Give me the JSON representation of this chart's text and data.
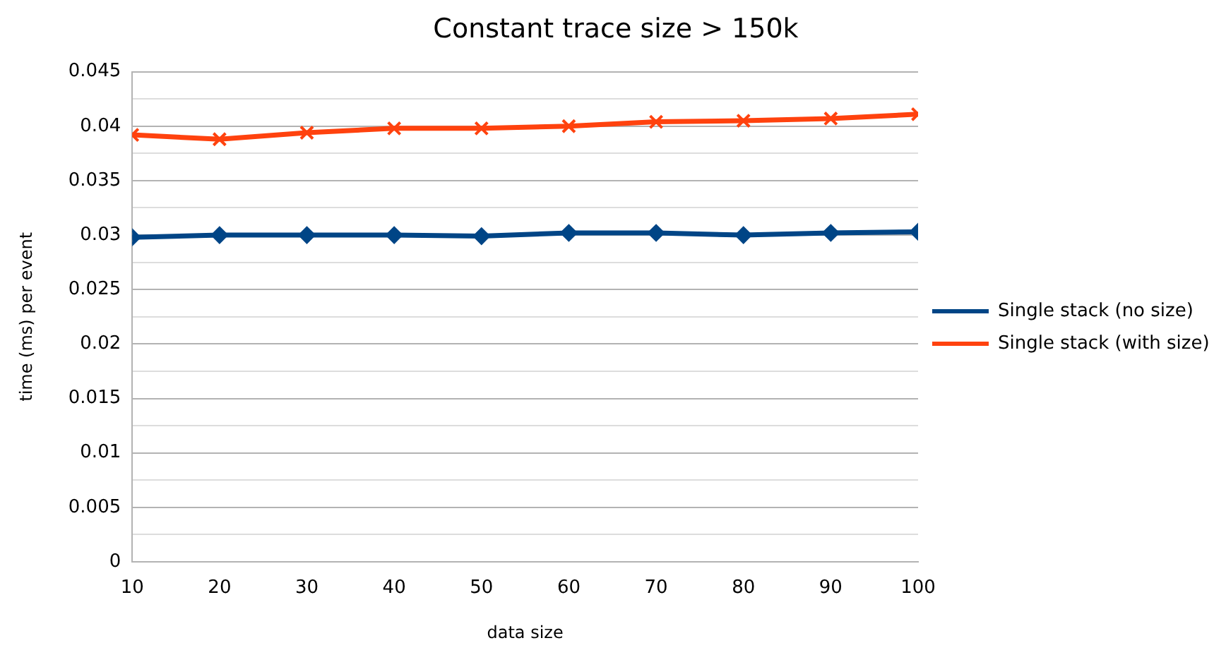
{
  "chart_data": {
    "type": "line",
    "title": "Constant trace size > 150k",
    "xlabel": "data size",
    "ylabel": "time (ms) per event",
    "x": [
      10,
      20,
      30,
      40,
      50,
      60,
      70,
      80,
      90,
      100
    ],
    "series": [
      {
        "name": "Single stack (no size)",
        "color": "#004586",
        "marker": "diamond",
        "values": [
          0.0298,
          0.03,
          0.03,
          0.03,
          0.0299,
          0.0302,
          0.0302,
          0.03,
          0.0302,
          0.0303
        ]
      },
      {
        "name": "Single stack (with size)",
        "color": "#ff420e",
        "marker": "cross",
        "values": [
          0.0392,
          0.0388,
          0.0394,
          0.0398,
          0.0398,
          0.04,
          0.0404,
          0.0405,
          0.0407,
          0.0411
        ]
      }
    ],
    "xlim": [
      10,
      100
    ],
    "xticks": [
      10,
      20,
      30,
      40,
      50,
      60,
      70,
      80,
      90,
      100
    ],
    "ylim": [
      0,
      0.045
    ],
    "yticks": [
      0,
      {
        "value": 0.0025,
        "label": null
      },
      0.005,
      {
        "value": 0.0075,
        "label": null
      },
      0.01,
      {
        "value": 0.0125,
        "label": null
      },
      0.015,
      {
        "value": 0.0175,
        "label": null
      },
      0.02,
      {
        "value": 0.0225,
        "label": null
      },
      0.025,
      {
        "value": 0.0275,
        "label": null
      },
      0.03,
      {
        "value": 0.0325,
        "label": null
      },
      0.035,
      {
        "value": 0.0375,
        "label": null
      },
      0.04,
      {
        "value": 0.0425,
        "label": null
      },
      0.045
    ],
    "grid": "y",
    "legend": "right",
    "line_style": "solid"
  }
}
